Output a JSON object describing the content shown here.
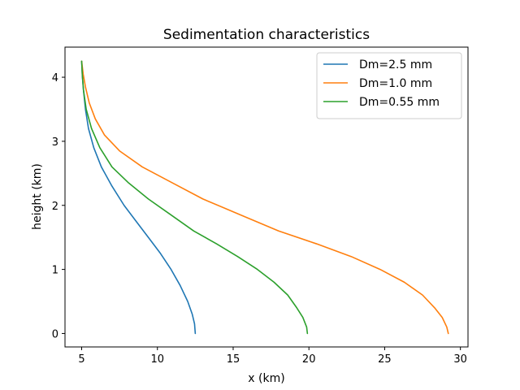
{
  "chart_data": {
    "type": "line",
    "title": "Sedimentation characteristics",
    "xlabel": "x (km)",
    "ylabel": "height (km)",
    "xlim": [
      3.9,
      30.5
    ],
    "ylim": [
      -0.21,
      4.47
    ],
    "xticks": [
      5,
      10,
      15,
      20,
      25,
      30
    ],
    "yticks": [
      0,
      1,
      2,
      3,
      4
    ],
    "grid": false,
    "legend_position": "top-right",
    "series": [
      {
        "name": "Dm=2.5 mm",
        "color": "#1f77b4",
        "points": [
          [
            12.5,
            0
          ],
          [
            12.45,
            0.15
          ],
          [
            12.3,
            0.3
          ],
          [
            12.0,
            0.5
          ],
          [
            11.5,
            0.75
          ],
          [
            10.9,
            1.0
          ],
          [
            10.2,
            1.25
          ],
          [
            9.4,
            1.5
          ],
          [
            8.6,
            1.75
          ],
          [
            7.8,
            2.0
          ],
          [
            7.0,
            2.3
          ],
          [
            6.3,
            2.6
          ],
          [
            5.8,
            2.9
          ],
          [
            5.45,
            3.2
          ],
          [
            5.25,
            3.5
          ],
          [
            5.12,
            3.8
          ],
          [
            5.05,
            4.0
          ],
          [
            5.02,
            4.15
          ],
          [
            5.0,
            4.25
          ]
        ]
      },
      {
        "name": "Dm=1.0 mm",
        "color": "#ff7f0e",
        "points": [
          [
            29.2,
            0
          ],
          [
            29.1,
            0.1
          ],
          [
            28.8,
            0.25
          ],
          [
            28.3,
            0.4
          ],
          [
            27.5,
            0.6
          ],
          [
            26.3,
            0.8
          ],
          [
            24.7,
            1.0
          ],
          [
            22.8,
            1.2
          ],
          [
            20.5,
            1.4
          ],
          [
            18.0,
            1.6
          ],
          [
            15.5,
            1.85
          ],
          [
            13.0,
            2.1
          ],
          [
            11.0,
            2.35
          ],
          [
            9.0,
            2.6
          ],
          [
            7.5,
            2.85
          ],
          [
            6.5,
            3.1
          ],
          [
            5.9,
            3.35
          ],
          [
            5.5,
            3.6
          ],
          [
            5.25,
            3.85
          ],
          [
            5.1,
            4.05
          ],
          [
            5.0,
            4.25
          ]
        ]
      },
      {
        "name": "Dm=0.55 mm",
        "color": "#2ca02c",
        "points": [
          [
            19.9,
            0
          ],
          [
            19.85,
            0.1
          ],
          [
            19.6,
            0.25
          ],
          [
            19.2,
            0.4
          ],
          [
            18.6,
            0.6
          ],
          [
            17.7,
            0.8
          ],
          [
            16.6,
            1.0
          ],
          [
            15.3,
            1.2
          ],
          [
            13.9,
            1.4
          ],
          [
            12.4,
            1.6
          ],
          [
            10.9,
            1.85
          ],
          [
            9.4,
            2.1
          ],
          [
            8.1,
            2.35
          ],
          [
            7.0,
            2.6
          ],
          [
            6.2,
            2.9
          ],
          [
            5.65,
            3.2
          ],
          [
            5.3,
            3.5
          ],
          [
            5.12,
            3.8
          ],
          [
            5.04,
            4.05
          ],
          [
            5.0,
            4.25
          ]
        ]
      }
    ]
  }
}
